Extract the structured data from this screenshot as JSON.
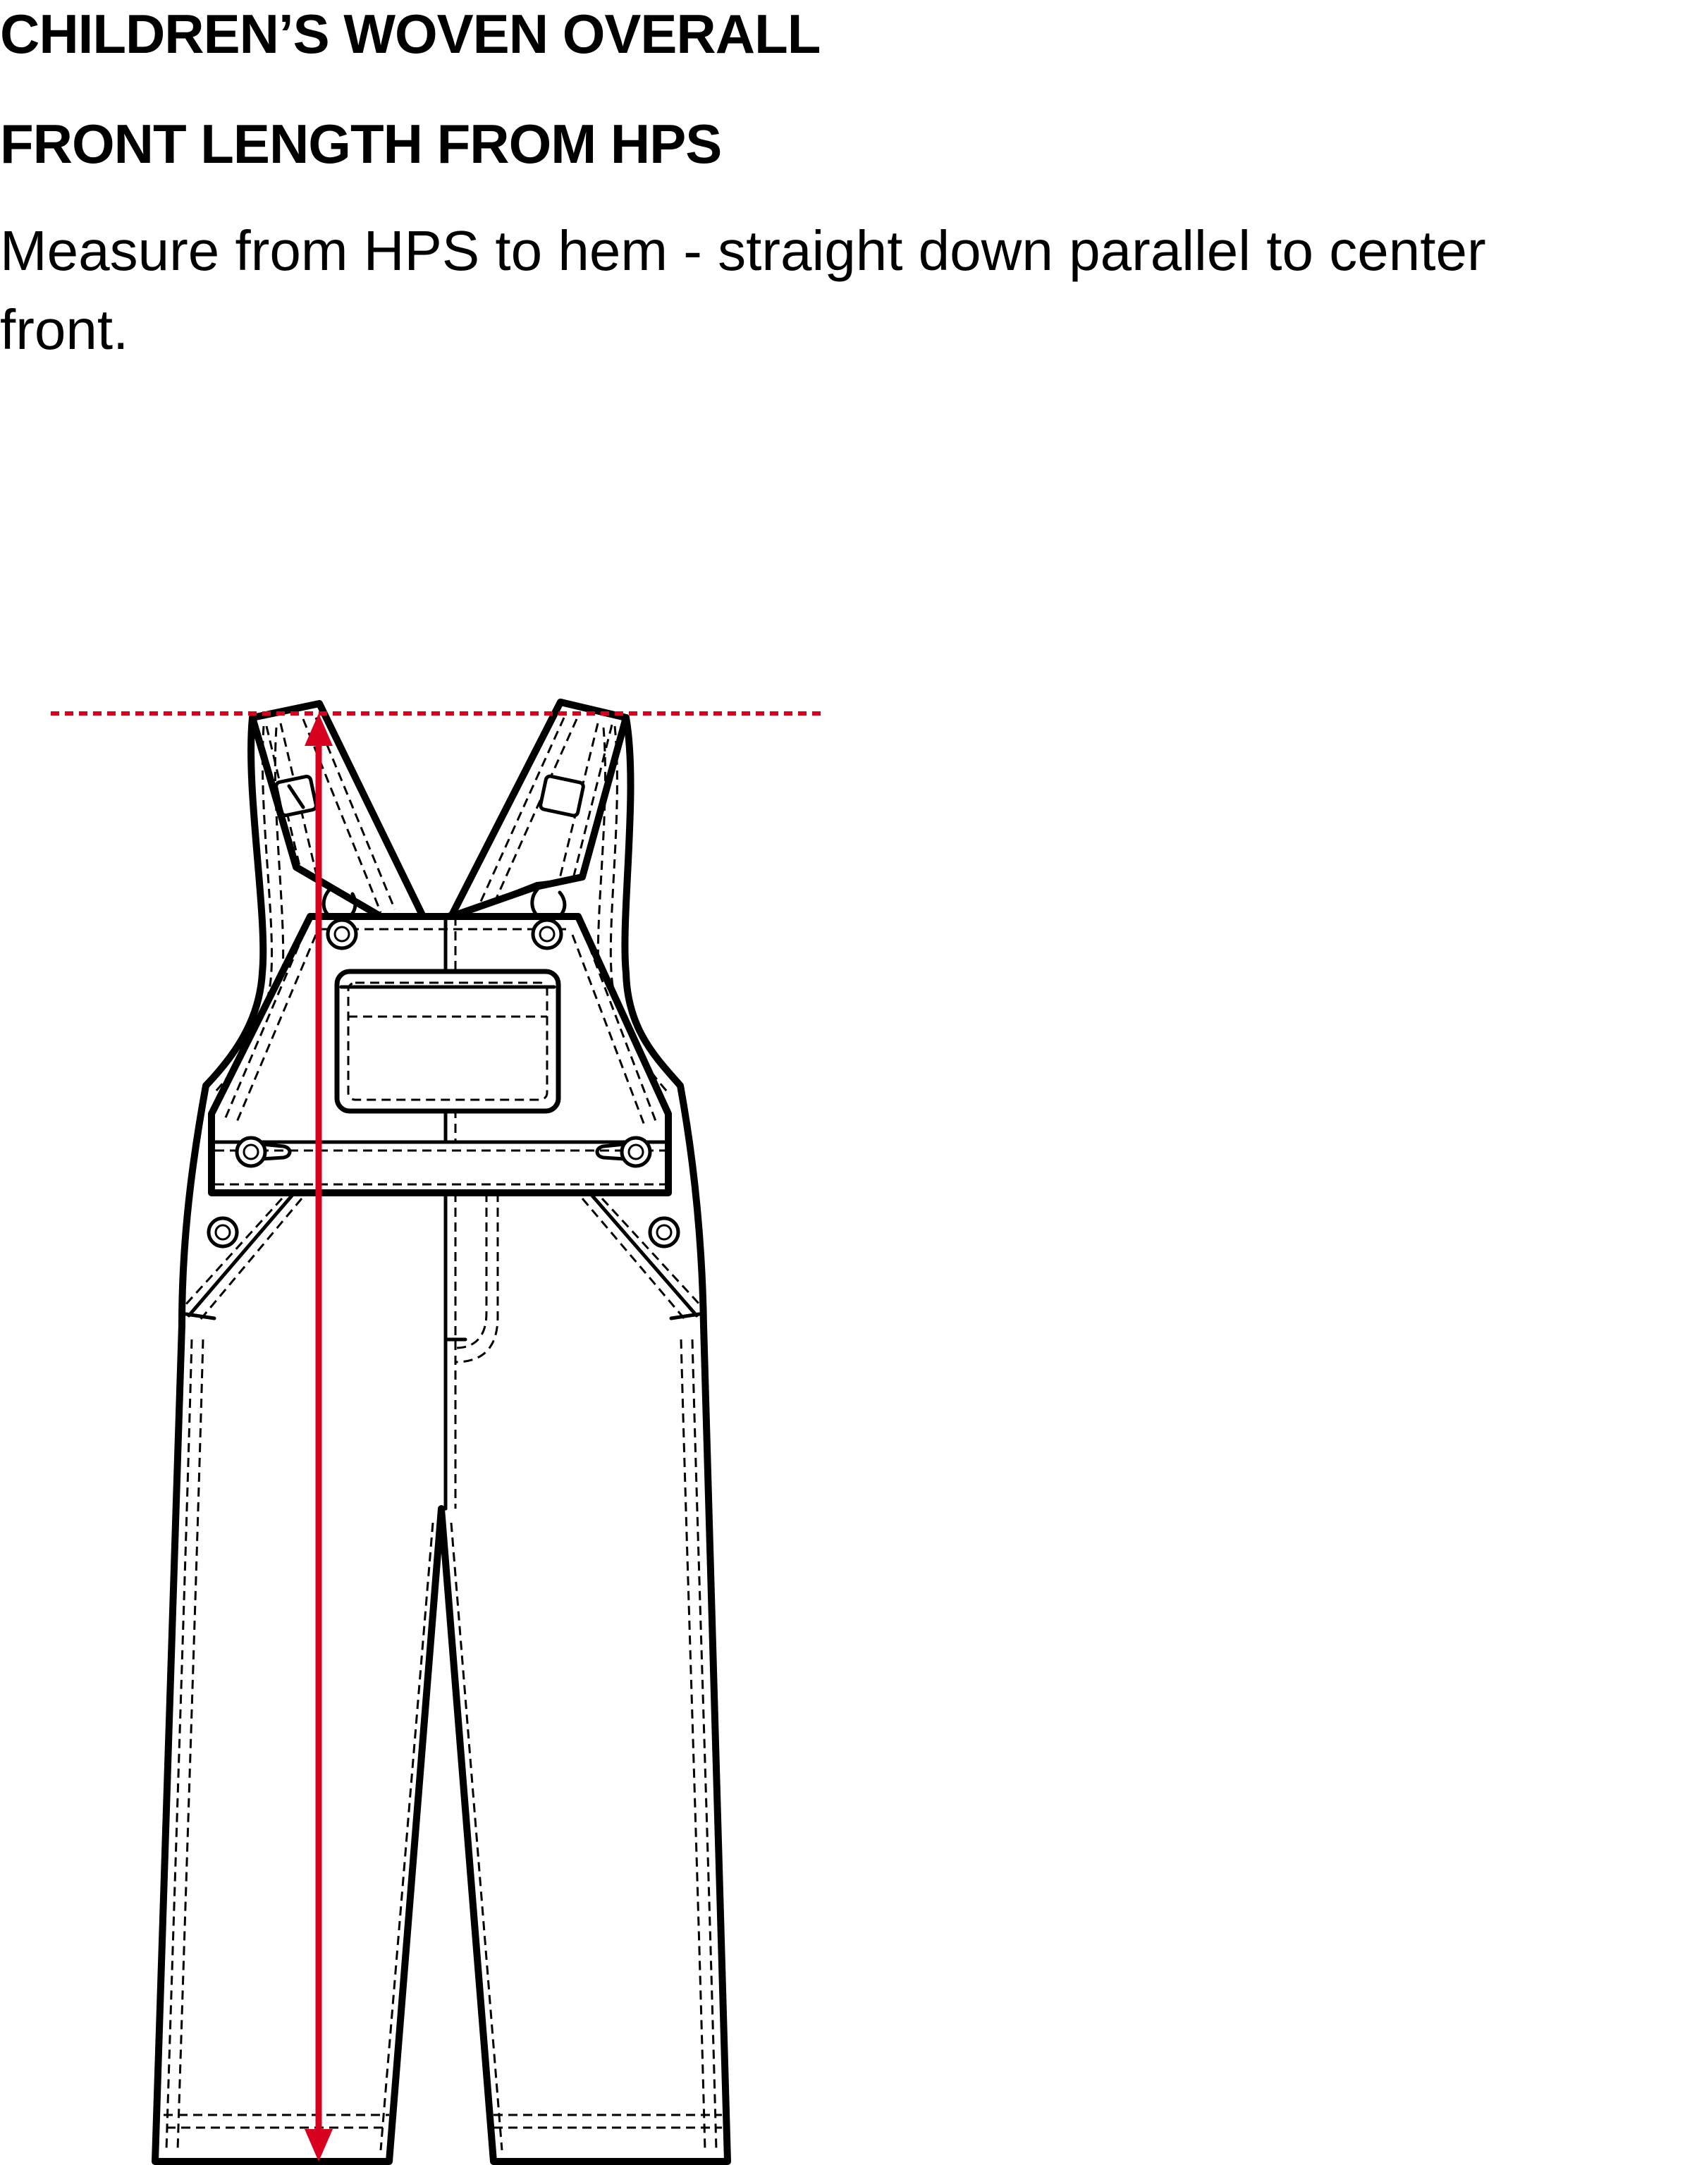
{
  "header": {
    "title": "CHILDREN’S WOVEN OVERALL",
    "subtitle": "FRONT LENGTH FROM HPS",
    "instruction": "Measure from HPS to hem - straight down parallel to center front."
  },
  "diagram": {
    "garment": "woven overall (bib and brace), front view",
    "measurement": "front length from HPS",
    "line_color": "#000000",
    "measure_color": "#d7001f"
  }
}
